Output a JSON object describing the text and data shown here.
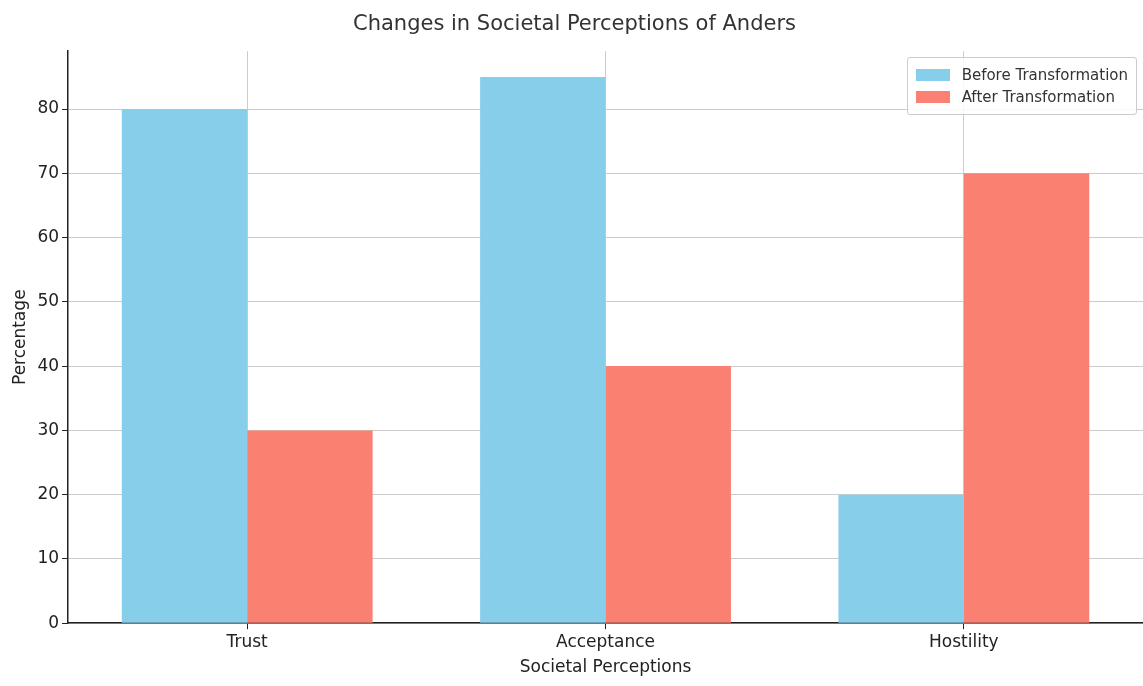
{
  "chart_data": {
    "type": "bar",
    "title": "Changes in Societal Perceptions of Anders",
    "xlabel": "Societal Perceptions",
    "ylabel": "Percentage",
    "categories": [
      "Trust",
      "Acceptance",
      "Hostility"
    ],
    "series": [
      {
        "name": "Before Transformation",
        "color": "#87ceeb",
        "values": [
          80,
          85,
          20
        ]
      },
      {
        "name": "After Transformation",
        "color": "#fa8072",
        "values": [
          30,
          40,
          70
        ]
      }
    ],
    "ylim": [
      0,
      89
    ],
    "yticks": [
      0,
      10,
      20,
      30,
      40,
      50,
      60,
      70,
      80
    ],
    "grid": true,
    "legend": "top right"
  }
}
